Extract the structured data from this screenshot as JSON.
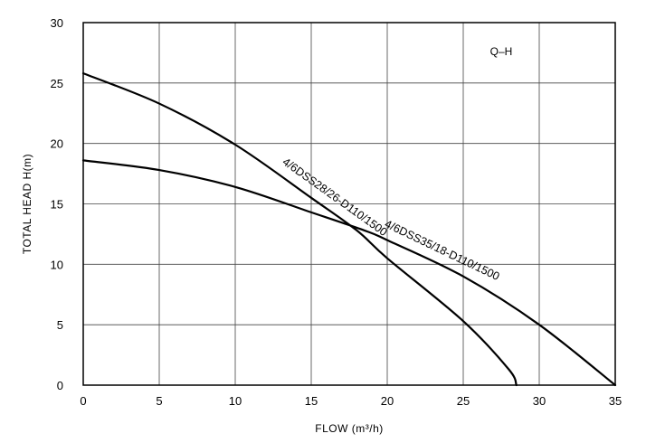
{
  "chart_data": {
    "type": "line",
    "title": "",
    "annotation": "Q–H",
    "xlabel": "FLOW (m³/h)",
    "ylabel": "TOTAL HEAD  H(m)",
    "xlim": [
      0,
      35
    ],
    "ylim": [
      0,
      30
    ],
    "x_ticks": [
      0,
      5,
      10,
      15,
      20,
      25,
      30,
      35
    ],
    "y_ticks": [
      0,
      5,
      10,
      15,
      20,
      25,
      30
    ],
    "grid": true,
    "series": [
      {
        "name": "4/6DSS28/26-D110/1500",
        "x": [
          0,
          5,
          10,
          15,
          18,
          20,
          25,
          28,
          28.5
        ],
        "y": [
          25.8,
          23.3,
          19.9,
          15.5,
          12.8,
          10.5,
          5.3,
          1.3,
          0
        ]
      },
      {
        "name": "4/6DSS35/18-D110/1500",
        "x": [
          0,
          5,
          10,
          15,
          18.5,
          20,
          25,
          30,
          35
        ],
        "y": [
          18.6,
          17.8,
          16.4,
          14.3,
          12.8,
          12.0,
          9.0,
          5.0,
          0
        ]
      }
    ]
  }
}
